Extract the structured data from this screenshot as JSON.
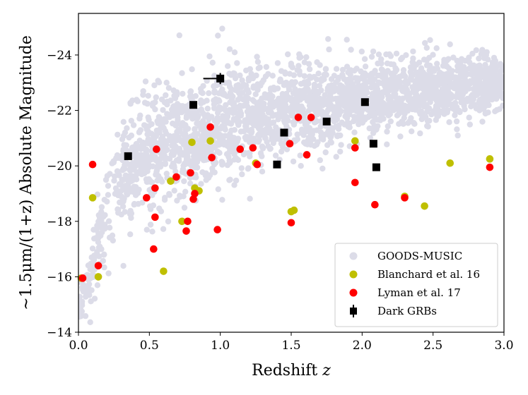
{
  "chart_data": {
    "type": "scatter",
    "title": "",
    "xlabel": "Redshift",
    "xlabel_symbol": "z",
    "ylabel": "~1.5μm/(1+z) Absolute Magnitude",
    "xlim": [
      0.0,
      3.0
    ],
    "ylim": [
      -14,
      -25.5
    ],
    "y_inverted": true,
    "grid": false,
    "legend_position": "bottom-right",
    "xticks": [
      0.0,
      0.5,
      1.0,
      1.5,
      2.0,
      2.5,
      3.0
    ],
    "xtick_labels": [
      "0.0",
      "0.5",
      "1.0",
      "1.5",
      "2.0",
      "2.5",
      "3.0"
    ],
    "yticks": [
      -24,
      -22,
      -20,
      -18,
      -16,
      -14
    ],
    "ytick_labels": [
      "−24",
      "−22",
      "−20",
      "−18",
      "−16",
      "−14"
    ],
    "series": [
      {
        "name": "GOODS-MUSIC",
        "color": "#dcdce8",
        "marker": "circle",
        "note": "dense background population (approximate cloud)",
        "anchors": [
          [
            0.05,
            -15.2,
            0.4
          ],
          [
            0.15,
            -17.5,
            0.9
          ],
          [
            0.25,
            -19.0,
            1.0
          ],
          [
            0.35,
            -20.0,
            1.1
          ],
          [
            0.45,
            -20.5,
            1.1
          ],
          [
            0.55,
            -20.6,
            1.1
          ],
          [
            0.7,
            -21.0,
            1.1
          ],
          [
            0.85,
            -21.2,
            1.0
          ],
          [
            1.0,
            -21.6,
            1.0
          ],
          [
            1.2,
            -21.8,
            0.9
          ],
          [
            1.4,
            -22.0,
            0.8
          ],
          [
            1.6,
            -22.1,
            0.75
          ],
          [
            1.8,
            -22.2,
            0.7
          ],
          [
            2.0,
            -22.4,
            0.65
          ],
          [
            2.2,
            -22.6,
            0.6
          ],
          [
            2.4,
            -22.7,
            0.6
          ],
          [
            2.6,
            -22.8,
            0.6
          ],
          [
            2.8,
            -22.9,
            0.55
          ],
          [
            2.95,
            -23.0,
            0.5
          ]
        ],
        "count": 2600
      },
      {
        "name": "Blanchard et al. 16",
        "color": "#bfbf00",
        "marker": "circle",
        "x": [
          0.02,
          0.1,
          0.14,
          0.6,
          0.65,
          0.73,
          0.8,
          0.82,
          0.85,
          0.93,
          1.25,
          1.5,
          1.52,
          1.95,
          2.3,
          2.44,
          2.62,
          2.9
        ],
        "y": [
          -15.95,
          -18.85,
          -16.0,
          -16.2,
          -19.45,
          -18.0,
          -20.85,
          -19.2,
          -19.1,
          -20.9,
          -20.1,
          -18.35,
          -18.4,
          -20.9,
          -18.9,
          -18.55,
          -20.1,
          -20.25
        ]
      },
      {
        "name": "Lyman et al. 17",
        "color": "#ff0000",
        "marker": "circle",
        "x": [
          0.03,
          0.1,
          0.14,
          0.48,
          0.53,
          0.54,
          0.54,
          0.55,
          0.69,
          0.76,
          0.77,
          0.79,
          0.81,
          0.82,
          0.93,
          0.94,
          0.98,
          1.14,
          1.23,
          1.26,
          1.49,
          1.5,
          1.55,
          1.61,
          1.64,
          1.95,
          1.95,
          2.09,
          2.3,
          2.9
        ],
        "y": [
          -15.95,
          -20.05,
          -16.4,
          -18.85,
          -17.0,
          -18.15,
          -19.2,
          -20.6,
          -19.6,
          -17.65,
          -18.0,
          -19.75,
          -18.8,
          -19.0,
          -21.4,
          -20.3,
          -17.7,
          -20.6,
          -20.65,
          -20.05,
          -20.8,
          -17.95,
          -21.75,
          -20.4,
          -21.75,
          -19.4,
          -20.65,
          -18.6,
          -18.85,
          -19.95
        ]
      },
      {
        "name": "Dark GRBs",
        "color": "#000000",
        "marker": "square",
        "x": [
          0.35,
          0.81,
          1.0,
          1.4,
          1.45,
          1.75,
          2.02,
          2.08,
          2.1
        ],
        "y": [
          -20.35,
          -22.2,
          -23.15,
          -20.05,
          -21.2,
          -21.6,
          -22.3,
          -20.8,
          -19.95
        ],
        "xerr_low": [
          0,
          0,
          0.12,
          0,
          0,
          0,
          0,
          0,
          0
        ],
        "yerr": [
          0,
          0,
          0.2,
          0,
          0,
          0,
          0,
          0,
          0
        ]
      }
    ]
  }
}
